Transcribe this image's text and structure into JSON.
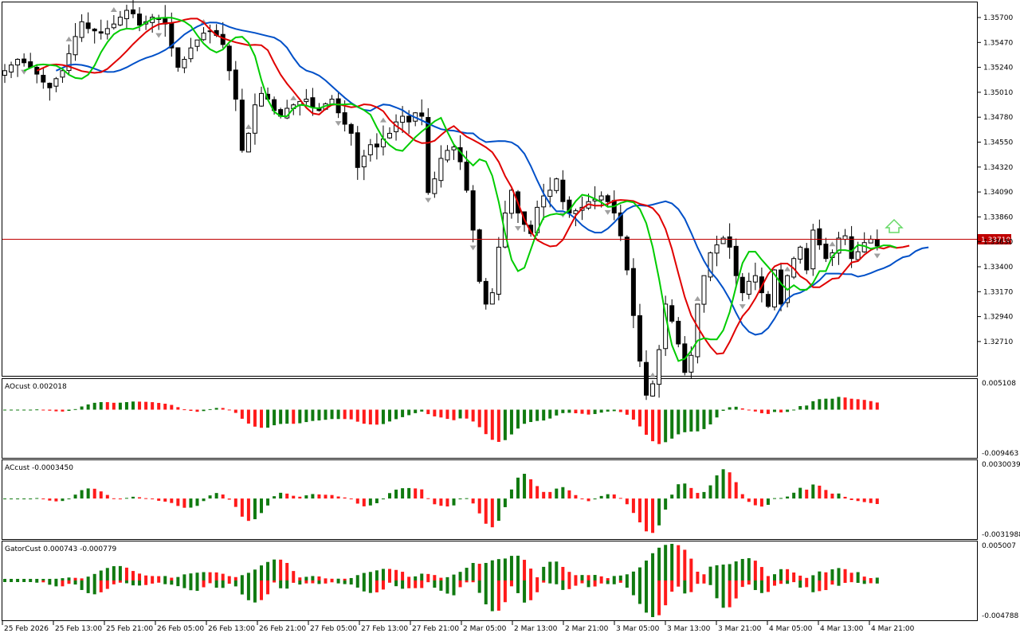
{
  "symbol_current_price_label": "1.33710",
  "colors": {
    "background": "#ffffff",
    "frame": "#000000",
    "ma_fast": "#00cc00",
    "ma_mid": "#e00000",
    "ma_slow": "#0050c8",
    "up_bar": "#107a10",
    "down_bar": "#ff1a1a",
    "fractal": "#a0a0a0",
    "price_line": "#c00000",
    "signal_arrow": "#66d966"
  },
  "main_pane": {
    "price_ticks": [
      "1.35700",
      "1.35470",
      "1.35240",
      "1.35010",
      "1.34780",
      "1.34550",
      "1.34320",
      "1.34090",
      "1.33860",
      "1.33630",
      "1.33400",
      "1.33170",
      "1.32940",
      "1.32710"
    ],
    "current_price": 1.3371
  },
  "ao_pane": {
    "title": "AOcust 0.002018",
    "max_label": "0.005108",
    "min_label": "-0.009463"
  },
  "ac_pane": {
    "title": "ACcust -0.0003450",
    "max_label": "0.0030039",
    "min_label": "-0.0031988"
  },
  "gator_pane": {
    "title": "GatorCust 0.000743 -0.000779",
    "max_label": "0.005007",
    "min_label": "-0.004788"
  },
  "time_axis": [
    "25 Feb 2026",
    "25 Feb 13:00",
    "25 Feb 21:00",
    "26 Feb 05:00",
    "26 Feb 13:00",
    "26 Feb 21:00",
    "27 Feb 05:00",
    "27 Feb 13:00",
    "27 Feb 21:00",
    "2 Mar 05:00",
    "2 Mar 13:00",
    "2 Mar 21:00",
    "3 Mar 05:00",
    "3 Mar 13:00",
    "3 Mar 21:00",
    "4 Mar 05:00",
    "4 Mar 13:00",
    "4 Mar 21:00"
  ],
  "chart_data": {
    "type": "candlestick",
    "price_range": [
      1.3257,
      1.3585
    ],
    "close_series": [
      1.3525,
      1.353,
      1.3535,
      1.3532,
      1.3528,
      1.3522,
      1.3515,
      1.351,
      1.3518,
      1.3525,
      1.354,
      1.3555,
      1.3568,
      1.3562,
      1.356,
      1.3558,
      1.3562,
      1.3566,
      1.3572,
      1.3578,
      1.3575,
      1.3565,
      1.3568,
      1.3572,
      1.357,
      1.3566,
      1.3545,
      1.3528,
      1.3535,
      1.3545,
      1.3552,
      1.3558,
      1.356,
      1.3556,
      1.3548,
      1.3525,
      1.35,
      1.3455,
      1.347,
      1.3495,
      1.3505,
      1.35,
      1.349,
      1.3485,
      1.3492,
      1.3495,
      1.3498,
      1.35,
      1.3493,
      1.349,
      1.3496,
      1.35,
      1.3488,
      1.3478,
      1.347,
      1.344,
      1.345,
      1.346,
      1.3458,
      1.3465,
      1.347,
      1.348,
      1.3485,
      1.348,
      1.3488,
      1.3485,
      1.3418,
      1.343,
      1.3448,
      1.3455,
      1.3458,
      1.3445,
      1.342,
      1.3385,
      1.334,
      1.332,
      1.333,
      1.337,
      1.34,
      1.342,
      1.34,
      1.339,
      1.3382,
      1.3405,
      1.3415,
      1.342,
      1.343,
      1.341,
      1.34,
      1.3402,
      1.3405,
      1.341,
      1.3412,
      1.3415,
      1.341,
      1.34,
      1.338,
      1.335,
      1.331,
      1.327,
      1.324,
      1.325,
      1.328,
      1.332,
      1.3305,
      1.3285,
      1.326,
      1.3275,
      1.332,
      1.3345,
      1.3365,
      1.3372,
      1.3378,
      1.337,
      1.3345,
      1.333,
      1.334,
      1.3345,
      1.333,
      1.3318,
      1.335,
      1.332,
      1.3345,
      1.336,
      1.337,
      1.335,
      1.3385,
      1.3372,
      1.336,
      1.3365,
      1.3378,
      1.338,
      1.336,
      1.3366,
      1.3374,
      1.3377,
      1.3371
    ],
    "ma_fast_label": "",
    "ma_mid_label": "",
    "ma_slow_label": ""
  }
}
